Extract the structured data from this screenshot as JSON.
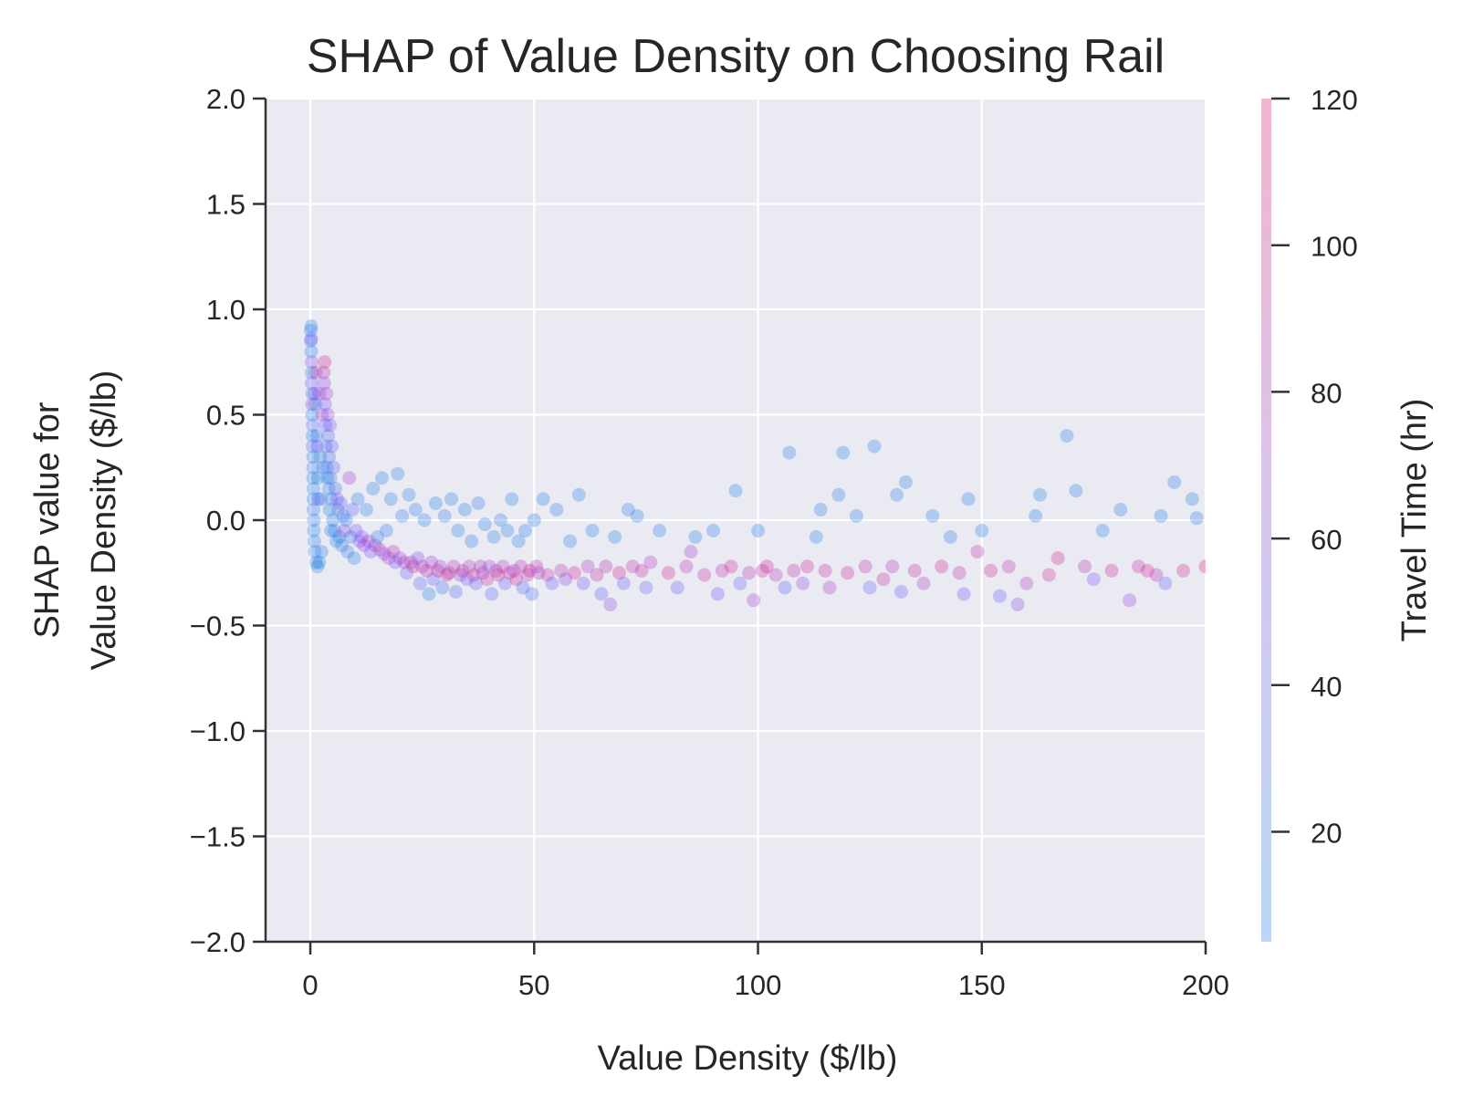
{
  "chart_data": {
    "type": "scatter",
    "title": "SHAP of Value Density on Choosing Rail",
    "xlabel": "Value Density ($/lb)",
    "ylabel_line1": "SHAP value for",
    "ylabel_line2": "Value Density ($/lb)",
    "xlim": [
      -10,
      200
    ],
    "ylim": [
      -2.0,
      2.0
    ],
    "x_ticks": [
      0,
      50,
      100,
      150,
      200
    ],
    "y_ticks": [
      -2.0,
      -1.5,
      -1.0,
      -0.5,
      0.0,
      0.5,
      1.0,
      1.5,
      2.0
    ],
    "x_tick_labels": [
      "0",
      "50",
      "100",
      "150",
      "200"
    ],
    "y_tick_labels": [
      "−2.0",
      "−1.5",
      "−1.0",
      "−0.5",
      "0.0",
      "0.5",
      "1.0",
      "1.5",
      "2.0"
    ],
    "grid": true,
    "background_color": "#eaeaf2",
    "colorbar": {
      "label": "Travel Time (hr)",
      "range": [
        5,
        120
      ],
      "ticks": [
        20,
        40,
        60,
        80,
        100,
        120
      ],
      "tick_labels": [
        "20",
        "40",
        "60",
        "80",
        "100",
        "120"
      ],
      "color_low": "#1e88e5",
      "color_high": "#ff0d57"
    },
    "point_alpha": 0.3,
    "points": [
      [
        0.1,
        0.9,
        10
      ],
      [
        0.1,
        0.85,
        15
      ],
      [
        0.2,
        0.92,
        8
      ],
      [
        0.2,
        0.86,
        60
      ],
      [
        0.2,
        0.8,
        12
      ],
      [
        0.3,
        0.75,
        70
      ],
      [
        0.3,
        0.7,
        10
      ],
      [
        0.3,
        0.65,
        50
      ],
      [
        0.4,
        0.6,
        12
      ],
      [
        0.4,
        0.55,
        80
      ],
      [
        0.4,
        0.5,
        10
      ],
      [
        0.5,
        0.45,
        40
      ],
      [
        0.5,
        0.4,
        10
      ],
      [
        0.5,
        0.35,
        30
      ],
      [
        0.6,
        0.3,
        10
      ],
      [
        0.6,
        0.25,
        20
      ],
      [
        0.6,
        0.2,
        10
      ],
      [
        0.7,
        0.15,
        12
      ],
      [
        0.7,
        0.1,
        10
      ],
      [
        0.7,
        0.05,
        15
      ],
      [
        0.8,
        0.0,
        10
      ],
      [
        0.8,
        -0.05,
        12
      ],
      [
        0.9,
        -0.1,
        10
      ],
      [
        1.0,
        -0.15,
        15
      ],
      [
        1.0,
        0.6,
        70
      ],
      [
        1.1,
        0.55,
        10
      ],
      [
        1.2,
        0.7,
        90
      ],
      [
        1.3,
        -0.2,
        10
      ],
      [
        1.4,
        0.4,
        12
      ],
      [
        1.5,
        0.35,
        60
      ],
      [
        1.6,
        -0.22,
        10
      ],
      [
        1.7,
        0.2,
        10
      ],
      [
        1.8,
        0.1,
        50
      ],
      [
        2.0,
        -0.2,
        12
      ],
      [
        2.0,
        0.6,
        70
      ],
      [
        2.2,
        0.3,
        10
      ],
      [
        2.4,
        0.1,
        15
      ],
      [
        2.5,
        -0.15,
        10
      ],
      [
        2.6,
        0.5,
        80
      ],
      [
        2.8,
        0.25,
        12
      ],
      [
        3.0,
        0.7,
        90
      ],
      [
        3.1,
        0.65,
        70
      ],
      [
        3.2,
        0.75,
        100
      ],
      [
        3.3,
        0.55,
        60
      ],
      [
        3.4,
        0.45,
        50
      ],
      [
        3.5,
        0.35,
        30
      ],
      [
        3.6,
        0.6,
        80
      ],
      [
        3.7,
        0.25,
        20
      ],
      [
        3.8,
        0.2,
        12
      ],
      [
        3.9,
        0.5,
        70
      ],
      [
        4.0,
        0.4,
        40
      ],
      [
        4.1,
        0.15,
        15
      ],
      [
        4.2,
        0.3,
        30
      ],
      [
        4.3,
        0.05,
        12
      ],
      [
        4.4,
        0.45,
        60
      ],
      [
        4.5,
        0.2,
        20
      ],
      [
        4.6,
        -0.05,
        10
      ],
      [
        4.7,
        0.1,
        15
      ],
      [
        4.8,
        0.35,
        50
      ],
      [
        5.0,
        0.0,
        12
      ],
      [
        5.2,
        0.25,
        40
      ],
      [
        5.4,
        -0.05,
        15
      ],
      [
        5.6,
        0.15,
        30
      ],
      [
        5.8,
        -0.1,
        10
      ],
      [
        6.0,
        0.1,
        60
      ],
      [
        6.2,
        0.05,
        20
      ],
      [
        6.5,
        -0.08,
        12
      ],
      [
        6.8,
        0.08,
        40
      ],
      [
        7.0,
        -0.12,
        15
      ],
      [
        7.3,
        0.02,
        30
      ],
      [
        7.6,
        -0.05,
        70
      ],
      [
        8.0,
        0.0,
        12
      ],
      [
        8.3,
        -0.15,
        20
      ],
      [
        8.7,
        0.2,
        80
      ],
      [
        9.0,
        -0.08,
        15
      ],
      [
        9.4,
        0.05,
        50
      ],
      [
        9.8,
        -0.18,
        12
      ],
      [
        10.2,
        -0.05,
        60
      ],
      [
        10.6,
        0.1,
        12
      ],
      [
        11.0,
        -0.1,
        70
      ],
      [
        11.5,
        -0.08,
        65
      ],
      [
        12.0,
        -0.12,
        70
      ],
      [
        12.5,
        0.05,
        12
      ],
      [
        13.0,
        -0.1,
        80
      ],
      [
        13.5,
        -0.15,
        60
      ],
      [
        14.0,
        0.15,
        12
      ],
      [
        14.5,
        -0.12,
        75
      ],
      [
        15.0,
        -0.08,
        20
      ],
      [
        15.5,
        -0.14,
        85
      ],
      [
        16.0,
        0.2,
        10
      ],
      [
        16.5,
        -0.16,
        70
      ],
      [
        17.0,
        -0.05,
        15
      ],
      [
        17.5,
        -0.18,
        80
      ],
      [
        18.0,
        0.1,
        12
      ],
      [
        18.5,
        -0.15,
        90
      ],
      [
        19.0,
        -0.2,
        60
      ],
      [
        19.5,
        0.22,
        10
      ],
      [
        20.0,
        -0.18,
        75
      ],
      [
        20.5,
        0.02,
        15
      ],
      [
        21.0,
        -0.2,
        85
      ],
      [
        21.5,
        -0.25,
        50
      ],
      [
        22.0,
        0.12,
        12
      ],
      [
        22.5,
        -0.2,
        80
      ],
      [
        23.0,
        -0.22,
        95
      ],
      [
        23.5,
        0.05,
        12
      ],
      [
        24.0,
        -0.18,
        70
      ],
      [
        24.5,
        -0.3,
        40
      ],
      [
        25.0,
        -0.22,
        85
      ],
      [
        25.5,
        0.0,
        15
      ],
      [
        26.0,
        -0.24,
        90
      ],
      [
        26.5,
        -0.35,
        12
      ],
      [
        27.0,
        -0.2,
        80
      ],
      [
        27.5,
        -0.28,
        50
      ],
      [
        28.0,
        0.08,
        12
      ],
      [
        28.5,
        -0.24,
        95
      ],
      [
        29.0,
        -0.22,
        80
      ],
      [
        29.5,
        -0.32,
        30
      ],
      [
        30.0,
        0.02,
        15
      ],
      [
        30.5,
        -0.26,
        100
      ],
      [
        31.0,
        -0.25,
        85
      ],
      [
        31.5,
        0.1,
        12
      ],
      [
        32.0,
        -0.22,
        90
      ],
      [
        32.5,
        -0.34,
        40
      ],
      [
        33.0,
        -0.05,
        12
      ],
      [
        33.5,
        -0.26,
        80
      ],
      [
        34.0,
        -0.24,
        95
      ],
      [
        34.5,
        0.05,
        10
      ],
      [
        35.0,
        -0.28,
        60
      ],
      [
        35.5,
        -0.22,
        85
      ],
      [
        36.0,
        -0.1,
        12
      ],
      [
        36.5,
        -0.26,
        100
      ],
      [
        37.0,
        -0.3,
        50
      ],
      [
        37.5,
        0.08,
        15
      ],
      [
        38.0,
        -0.22,
        90
      ],
      [
        38.5,
        -0.25,
        80
      ],
      [
        39.0,
        -0.02,
        12
      ],
      [
        39.5,
        -0.28,
        95
      ],
      [
        40.0,
        -0.22,
        75
      ],
      [
        40.5,
        -0.35,
        45
      ],
      [
        41.0,
        -0.08,
        12
      ],
      [
        41.5,
        -0.24,
        90
      ],
      [
        42.0,
        -0.26,
        100
      ],
      [
        42.5,
        0.0,
        15
      ],
      [
        43.0,
        -0.22,
        85
      ],
      [
        43.5,
        -0.3,
        55
      ],
      [
        44.0,
        -0.05,
        12
      ],
      [
        44.5,
        -0.25,
        95
      ],
      [
        45.0,
        0.1,
        10
      ],
      [
        45.5,
        -0.24,
        80
      ],
      [
        46.0,
        -0.28,
        100
      ],
      [
        46.5,
        -0.1,
        12
      ],
      [
        47.0,
        -0.22,
        90
      ],
      [
        47.5,
        -0.32,
        40
      ],
      [
        48.0,
        -0.05,
        15
      ],
      [
        48.5,
        -0.26,
        85
      ],
      [
        49.0,
        -0.24,
        100
      ],
      [
        49.5,
        -0.35,
        35
      ],
      [
        50.0,
        0.0,
        12
      ],
      [
        50.5,
        -0.22,
        90
      ],
      [
        51.0,
        -0.25,
        80
      ],
      [
        52.0,
        0.1,
        12
      ],
      [
        53.0,
        -0.26,
        95
      ],
      [
        54.0,
        -0.3,
        50
      ],
      [
        55.0,
        0.05,
        15
      ],
      [
        56.0,
        -0.24,
        90
      ],
      [
        57.0,
        -0.28,
        70
      ],
      [
        58.0,
        -0.1,
        12
      ],
      [
        59.0,
        -0.25,
        100
      ],
      [
        60.0,
        0.12,
        10
      ],
      [
        61.0,
        -0.3,
        60
      ],
      [
        62.0,
        -0.22,
        85
      ],
      [
        63.0,
        -0.05,
        12
      ],
      [
        64.0,
        -0.26,
        95
      ],
      [
        65.0,
        -0.35,
        40
      ],
      [
        66.0,
        -0.22,
        90
      ],
      [
        67.0,
        -0.4,
        70
      ],
      [
        68.0,
        -0.08,
        12
      ],
      [
        69.0,
        -0.25,
        100
      ],
      [
        70.0,
        -0.3,
        50
      ],
      [
        71.0,
        0.05,
        15
      ],
      [
        72.0,
        -0.22,
        90
      ],
      [
        73.0,
        0.02,
        12
      ],
      [
        74.0,
        -0.24,
        95
      ],
      [
        75.0,
        -0.32,
        45
      ],
      [
        76.0,
        -0.2,
        85
      ],
      [
        78.0,
        -0.05,
        12
      ],
      [
        80.0,
        -0.25,
        100
      ],
      [
        82.0,
        -0.32,
        50
      ],
      [
        84.0,
        -0.22,
        90
      ],
      [
        85.0,
        -0.15,
        80
      ],
      [
        86.0,
        -0.08,
        12
      ],
      [
        88.0,
        -0.26,
        95
      ],
      [
        90.0,
        -0.05,
        15
      ],
      [
        91.0,
        -0.35,
        60
      ],
      [
        92.0,
        -0.24,
        90
      ],
      [
        94.0,
        -0.22,
        100
      ],
      [
        95.0,
        0.14,
        10
      ],
      [
        96.0,
        -0.3,
        45
      ],
      [
        98.0,
        -0.25,
        90
      ],
      [
        99.0,
        -0.38,
        80
      ],
      [
        100.0,
        -0.05,
        12
      ],
      [
        101.0,
        -0.24,
        95
      ],
      [
        102.0,
        -0.22,
        100
      ],
      [
        104.0,
        -0.26,
        85
      ],
      [
        106.0,
        -0.32,
        40
      ],
      [
        107.0,
        0.32,
        10
      ],
      [
        108.0,
        -0.24,
        90
      ],
      [
        110.0,
        -0.3,
        70
      ],
      [
        111.0,
        -0.22,
        100
      ],
      [
        113.0,
        -0.08,
        12
      ],
      [
        114.0,
        0.05,
        15
      ],
      [
        115.0,
        -0.24,
        95
      ],
      [
        116.0,
        -0.32,
        85
      ],
      [
        118.0,
        0.12,
        12
      ],
      [
        119.0,
        0.32,
        10
      ],
      [
        120.0,
        -0.25,
        100
      ],
      [
        122.0,
        0.02,
        15
      ],
      [
        124.0,
        -0.22,
        90
      ],
      [
        125.0,
        -0.32,
        45
      ],
      [
        126.0,
        0.35,
        10
      ],
      [
        128.0,
        -0.28,
        95
      ],
      [
        130.0,
        -0.22,
        85
      ],
      [
        131.0,
        0.12,
        12
      ],
      [
        132.0,
        -0.34,
        50
      ],
      [
        133.0,
        0.18,
        10
      ],
      [
        135.0,
        -0.24,
        95
      ],
      [
        137.0,
        -0.3,
        85
      ],
      [
        139.0,
        0.02,
        12
      ],
      [
        141.0,
        -0.22,
        100
      ],
      [
        143.0,
        -0.08,
        15
      ],
      [
        145.0,
        -0.25,
        90
      ],
      [
        146.0,
        -0.35,
        60
      ],
      [
        147.0,
        0.1,
        12
      ],
      [
        149.0,
        -0.15,
        95
      ],
      [
        150.0,
        -0.05,
        12
      ],
      [
        152.0,
        -0.24,
        100
      ],
      [
        154.0,
        -0.36,
        50
      ],
      [
        156.0,
        -0.22,
        90
      ],
      [
        158.0,
        -0.4,
        70
      ],
      [
        160.0,
        -0.3,
        85
      ],
      [
        162.0,
        0.02,
        12
      ],
      [
        163.0,
        0.12,
        10
      ],
      [
        165.0,
        -0.26,
        95
      ],
      [
        167.0,
        -0.18,
        100
      ],
      [
        169.0,
        0.4,
        10
      ],
      [
        171.0,
        0.14,
        12
      ],
      [
        173.0,
        -0.22,
        90
      ],
      [
        175.0,
        -0.28,
        60
      ],
      [
        177.0,
        -0.05,
        12
      ],
      [
        179.0,
        -0.24,
        100
      ],
      [
        181.0,
        0.05,
        15
      ],
      [
        183.0,
        -0.38,
        75
      ],
      [
        185.0,
        -0.22,
        95
      ],
      [
        187.0,
        -0.24,
        100
      ],
      [
        189.0,
        -0.26,
        90
      ],
      [
        190.0,
        0.02,
        12
      ],
      [
        191.0,
        -0.3,
        50
      ],
      [
        193.0,
        0.18,
        10
      ],
      [
        195.0,
        -0.24,
        100
      ],
      [
        197.0,
        0.1,
        12
      ],
      [
        198.0,
        0.01,
        15
      ],
      [
        200.0,
        -0.22,
        110
      ]
    ]
  }
}
